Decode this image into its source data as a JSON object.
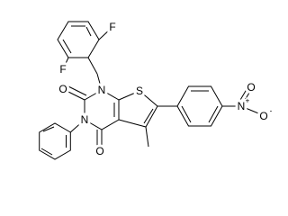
{
  "atoms": [
    "F",
    "F",
    "N",
    "O",
    "N",
    "O",
    "S",
    "N",
    "O",
    "O"
  ],
  "charges": [
    "+",
    "-"
  ]
}
